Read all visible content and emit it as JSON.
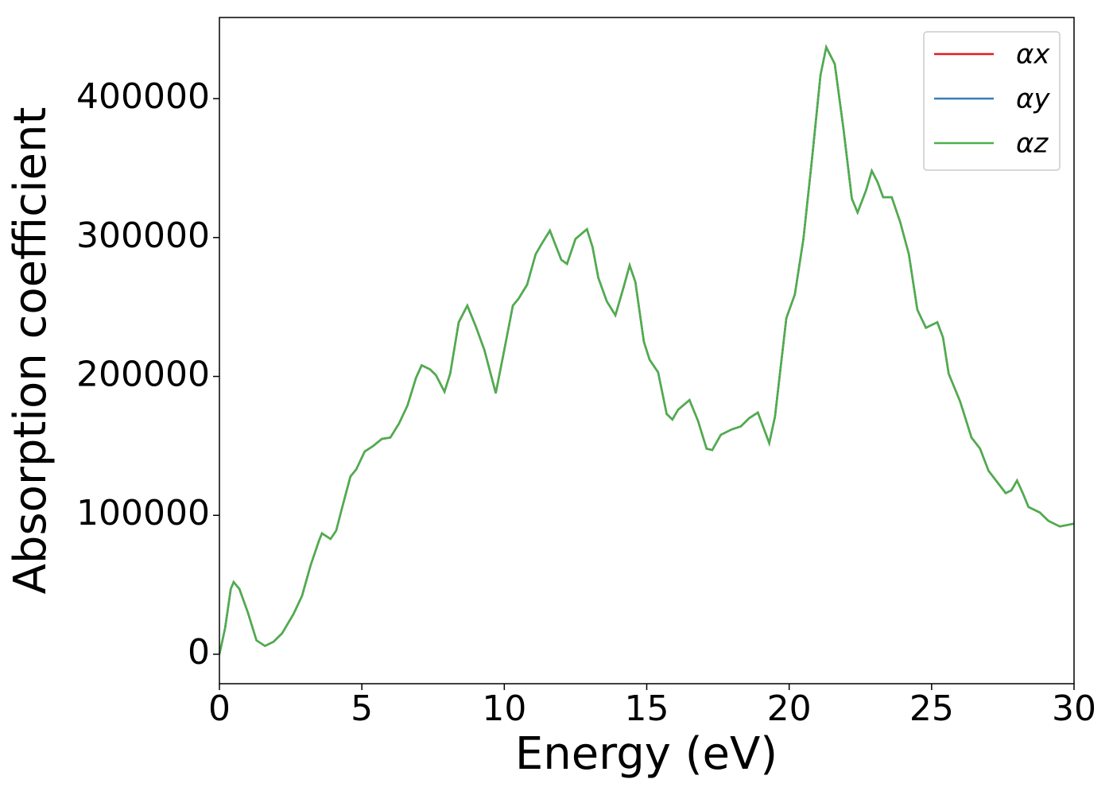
{
  "chart_data": {
    "type": "line",
    "xlabel": "Energy (eV)",
    "ylabel": "Absorption coefficient",
    "x": [
      0,
      0.2,
      0.4,
      0.5,
      0.7,
      1.0,
      1.3,
      1.6,
      1.9,
      2.2,
      2.6,
      2.9,
      3.2,
      3.5,
      3.6,
      3.9,
      4.1,
      4.3,
      4.6,
      4.8,
      5.1,
      5.4,
      5.7,
      6.0,
      6.3,
      6.6,
      6.9,
      7.1,
      7.4,
      7.6,
      7.9,
      8.1,
      8.4,
      8.7,
      9.0,
      9.3,
      9.7,
      10.0,
      10.3,
      10.5,
      10.8,
      11.1,
      11.3,
      11.6,
      12.0,
      12.2,
      12.5,
      12.9,
      13.1,
      13.3,
      13.6,
      13.9,
      14.2,
      14.4,
      14.6,
      14.9,
      15.1,
      15.4,
      15.7,
      15.9,
      16.1,
      16.5,
      16.8,
      17.1,
      17.3,
      17.6,
      18.0,
      18.3,
      18.6,
      18.9,
      19.3,
      19.5,
      19.9,
      20.2,
      20.5,
      20.8,
      21.1,
      21.3,
      21.6,
      21.9,
      22.2,
      22.4,
      22.7,
      22.9,
      23.1,
      23.3,
      23.6,
      23.9,
      24.2,
      24.5,
      24.8,
      25.2,
      25.4,
      25.6,
      26.0,
      26.4,
      26.7,
      27.0,
      27.3,
      27.6,
      27.8,
      28.0,
      28.2,
      28.4,
      28.8,
      29.1,
      29.5,
      30.0
    ],
    "series": [
      {
        "name": "αx",
        "color": "#e41a1c",
        "values": [
          0,
          19000,
          47000,
          52000,
          47000,
          30000,
          10000,
          6000,
          9000,
          15000,
          29000,
          42000,
          64000,
          82000,
          87000,
          83000,
          89000,
          105000,
          128000,
          133000,
          146000,
          150000,
          155000,
          156000,
          166000,
          179000,
          199000,
          208000,
          205000,
          201000,
          189000,
          202000,
          239000,
          251000,
          236000,
          219000,
          188000,
          219000,
          251000,
          256000,
          266000,
          288000,
          295000,
          305000,
          284000,
          281000,
          299000,
          306000,
          293000,
          271000,
          254000,
          244000,
          265000,
          280000,
          268000,
          225000,
          212000,
          203000,
          173000,
          169000,
          176000,
          183000,
          168000,
          148000,
          147000,
          158000,
          162000,
          164000,
          170000,
          174000,
          152000,
          171000,
          242000,
          259000,
          299000,
          356000,
          417000,
          437000,
          425000,
          379000,
          328000,
          318000,
          334000,
          348000,
          340000,
          329000,
          329000,
          311000,
          288000,
          248000,
          235000,
          239000,
          228000,
          202000,
          182000,
          156000,
          148000,
          132000,
          124000,
          116000,
          118000,
          125000,
          116000,
          106000,
          102000,
          96000,
          92000,
          94000
        ]
      },
      {
        "name": "αy",
        "color": "#377eb8",
        "values": [
          0,
          19000,
          47000,
          52000,
          47000,
          30000,
          10000,
          6000,
          9000,
          15000,
          29000,
          42000,
          64000,
          82000,
          87000,
          83000,
          89000,
          105000,
          128000,
          133000,
          146000,
          150000,
          155000,
          156000,
          166000,
          179000,
          199000,
          208000,
          205000,
          201000,
          189000,
          202000,
          239000,
          251000,
          236000,
          219000,
          188000,
          219000,
          251000,
          256000,
          266000,
          288000,
          295000,
          305000,
          284000,
          281000,
          299000,
          306000,
          293000,
          271000,
          254000,
          244000,
          265000,
          280000,
          268000,
          225000,
          212000,
          203000,
          173000,
          169000,
          176000,
          183000,
          168000,
          148000,
          147000,
          158000,
          162000,
          164000,
          170000,
          174000,
          152000,
          171000,
          242000,
          259000,
          299000,
          356000,
          417000,
          437000,
          425000,
          379000,
          328000,
          318000,
          334000,
          348000,
          340000,
          329000,
          329000,
          311000,
          288000,
          248000,
          235000,
          239000,
          228000,
          202000,
          182000,
          156000,
          148000,
          132000,
          124000,
          116000,
          118000,
          125000,
          116000,
          106000,
          102000,
          96000,
          92000,
          94000
        ]
      },
      {
        "name": "αz",
        "color": "#4daf4a",
        "values": [
          0,
          19000,
          47000,
          52000,
          47000,
          30000,
          10000,
          6000,
          9000,
          15000,
          29000,
          42000,
          64000,
          82000,
          87000,
          83000,
          89000,
          105000,
          128000,
          133000,
          146000,
          150000,
          155000,
          156000,
          166000,
          179000,
          199000,
          208000,
          205000,
          201000,
          189000,
          202000,
          239000,
          251000,
          236000,
          219000,
          188000,
          219000,
          251000,
          256000,
          266000,
          288000,
          295000,
          305000,
          284000,
          281000,
          299000,
          306000,
          293000,
          271000,
          254000,
          244000,
          265000,
          280000,
          268000,
          225000,
          212000,
          203000,
          173000,
          169000,
          176000,
          183000,
          168000,
          148000,
          147000,
          158000,
          162000,
          164000,
          170000,
          174000,
          152000,
          171000,
          242000,
          259000,
          299000,
          356000,
          417000,
          437000,
          425000,
          379000,
          328000,
          318000,
          334000,
          348000,
          340000,
          329000,
          329000,
          311000,
          288000,
          248000,
          235000,
          239000,
          228000,
          202000,
          182000,
          156000,
          148000,
          132000,
          124000,
          116000,
          118000,
          125000,
          116000,
          106000,
          102000,
          96000,
          92000,
          94000
        ]
      }
    ],
    "xlim": [
      0,
      30
    ],
    "xticks": [
      0,
      5,
      10,
      15,
      20,
      25,
      30
    ],
    "ylim": [
      -21200,
      458400
    ],
    "yticks": [
      0,
      100000,
      200000,
      300000,
      400000
    ],
    "legend": "upper right"
  }
}
